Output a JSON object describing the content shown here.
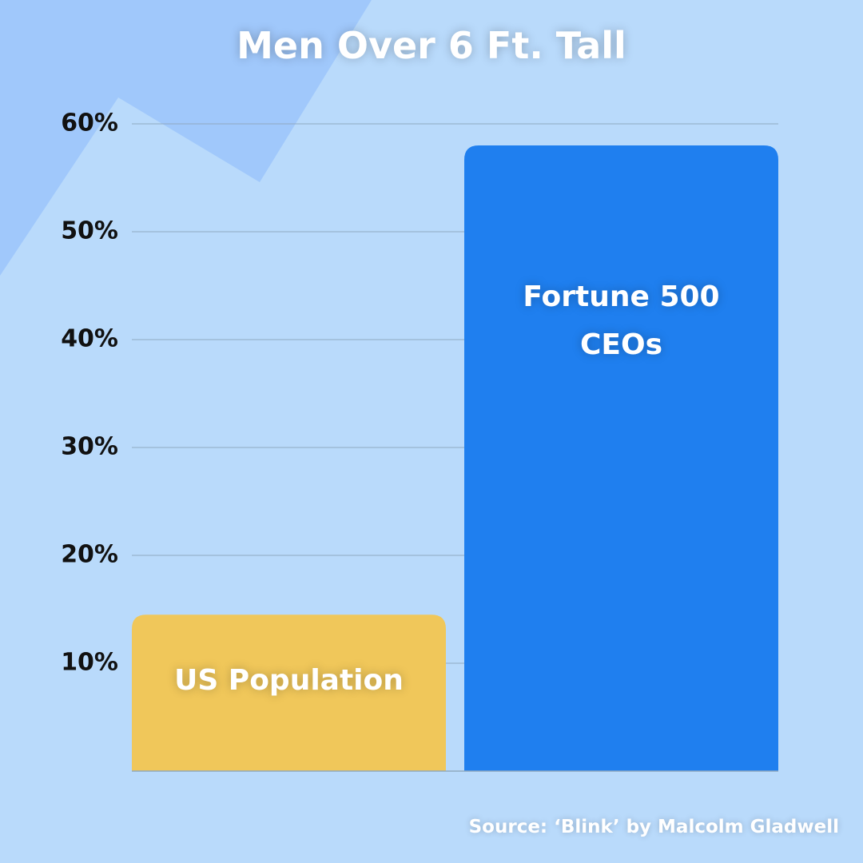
{
  "chart_data": {
    "type": "bar",
    "title": "Men Over 6 Ft. Tall",
    "categories": [
      "US Population",
      "Fortune 500 CEOs"
    ],
    "values": [
      14.5,
      58
    ],
    "colors": [
      "#f0c75a",
      "#1f7fef"
    ],
    "ylim": [
      0,
      60
    ],
    "yticks": [
      {
        "value": 10,
        "label": "10%"
      },
      {
        "value": 20,
        "label": "20%"
      },
      {
        "value": 30,
        "label": "30%"
      },
      {
        "value": 40,
        "label": "40%"
      },
      {
        "value": 50,
        "label": "50%"
      },
      {
        "value": 60,
        "label": "60%"
      }
    ],
    "grid": true,
    "source": "Source: ‘Blink’ by Malcolm Gladwell"
  }
}
